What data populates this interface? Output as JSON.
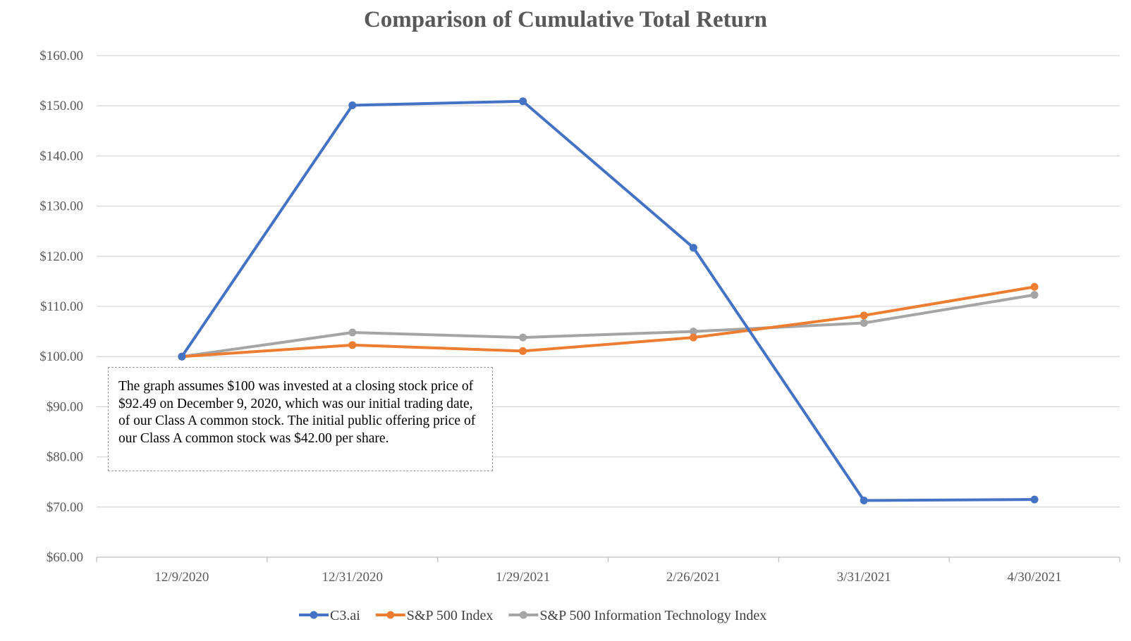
{
  "chart_data": {
    "type": "line",
    "title": "Comparison of Cumulative Total Return",
    "xlabel": "",
    "ylabel": "",
    "categories": [
      "12/9/2020",
      "12/31/2020",
      "1/29/2021",
      "2/26/2021",
      "3/31/2021",
      "4/30/2021"
    ],
    "y_ticks": [
      "$60.00",
      "$70.00",
      "$80.00",
      "$90.00",
      "$100.00",
      "$110.00",
      "$120.00",
      "$130.00",
      "$140.00",
      "$150.00",
      "$160.00"
    ],
    "ylim": [
      60,
      160
    ],
    "grid": true,
    "legend_position": "bottom",
    "series": [
      {
        "name": "C3.ai",
        "color": "#4472C4",
        "values": [
          100.0,
          150.1,
          150.9,
          121.7,
          71.3,
          71.5
        ]
      },
      {
        "name": "S&P 500 Index",
        "color": "#ED7D31",
        "values": [
          100.0,
          102.3,
          101.1,
          103.8,
          108.2,
          113.9
        ]
      },
      {
        "name": "S&P 500 Information Technology Index",
        "color": "#A5A5A5",
        "values": [
          100.0,
          104.8,
          103.8,
          105.0,
          106.7,
          112.3
        ]
      }
    ],
    "annotation": "The graph assumes $100 was invested at a closing stock price of $92.49 on December 9, 2020, which was our initial trading date, of our Class A common stock. The initial public offering price of our Class A common stock was $42.00 per share."
  }
}
